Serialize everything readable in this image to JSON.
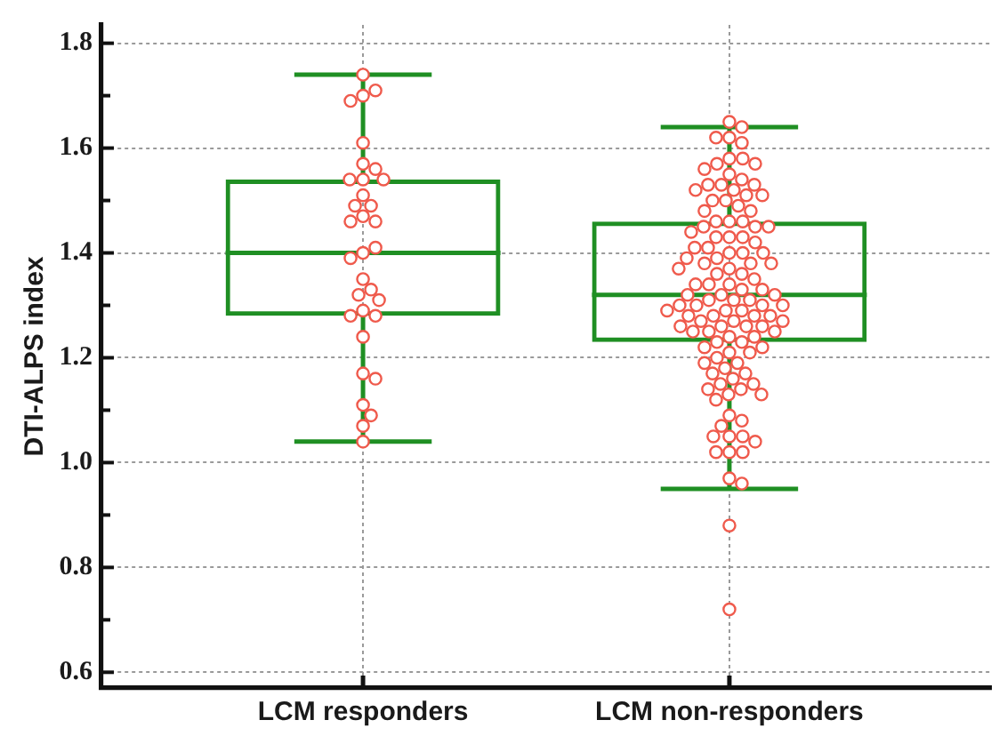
{
  "chart_data": {
    "type": "box",
    "ylabel": "DTI-ALPS index",
    "categories": [
      "LCM responders",
      "LCM non-responders"
    ],
    "ylim": [
      0.57,
      1.835
    ],
    "yticks": [
      0.6,
      {
        "value": 0.7,
        "label": null
      },
      0.8,
      {
        "value": 0.9,
        "label": null
      },
      {
        "value": 1,
        "label": "1.0"
      },
      {
        "value": 1.1,
        "label": null
      },
      1.2,
      {
        "value": 1.3,
        "label": null
      },
      1.4,
      {
        "value": 1.5,
        "label": null
      },
      1.6,
      {
        "value": 1.7,
        "label": null
      },
      1.8
    ],
    "grid": true,
    "marker": "circle",
    "series": [
      {
        "type": "box",
        "color": "#1f8f23",
        "boxes": [
          {
            "low": 1.04,
            "q1": 1.28,
            "median": 1.4,
            "q3": 1.54,
            "high": 1.74
          },
          {
            "low": 0.95,
            "q1": 1.23,
            "median": 1.32,
            "q3": 1.46,
            "high": 1.64
          }
        ]
      },
      {
        "type": "scatter",
        "color": "#ef5a4c",
        "x": [
          "LCM responders",
          "LCM responders",
          "LCM responders",
          "LCM responders",
          "LCM responders",
          "LCM responders",
          "LCM responders",
          "LCM responders",
          "LCM responders",
          "LCM responders",
          "LCM responders",
          "LCM responders",
          "LCM responders",
          "LCM responders",
          "LCM responders",
          "LCM responders",
          "LCM responders",
          "LCM responders",
          "LCM responders",
          "LCM responders",
          "LCM responders",
          "LCM responders",
          "LCM responders",
          "LCM responders",
          "LCM responders",
          "LCM responders",
          "LCM responders",
          "LCM responders",
          "LCM responders",
          "LCM responders",
          "LCM responders",
          "LCM responders",
          "LCM responders",
          "LCM non-responders",
          "LCM non-responders",
          "LCM non-responders",
          "LCM non-responders",
          "LCM non-responders",
          "LCM non-responders",
          "LCM non-responders",
          "LCM non-responders",
          "LCM non-responders",
          "LCM non-responders",
          "LCM non-responders",
          "LCM non-responders",
          "LCM non-responders",
          "LCM non-responders",
          "LCM non-responders",
          "LCM non-responders",
          "LCM non-responders",
          "LCM non-responders",
          "LCM non-responders",
          "LCM non-responders",
          "LCM non-responders",
          "LCM non-responders",
          "LCM non-responders",
          "LCM non-responders",
          "LCM non-responders",
          "LCM non-responders",
          "LCM non-responders",
          "LCM non-responders",
          "LCM non-responders",
          "LCM non-responders",
          "LCM non-responders",
          "LCM non-responders",
          "LCM non-responders",
          "LCM non-responders",
          "LCM non-responders",
          "LCM non-responders",
          "LCM non-responders",
          "LCM non-responders",
          "LCM non-responders",
          "LCM non-responders",
          "LCM non-responders",
          "LCM non-responders",
          "LCM non-responders",
          "LCM non-responders",
          "LCM non-responders",
          "LCM non-responders",
          "LCM non-responders",
          "LCM non-responders",
          "LCM non-responders",
          "LCM non-responders",
          "LCM non-responders",
          "LCM non-responders",
          "LCM non-responders",
          "LCM non-responders",
          "LCM non-responders",
          "LCM non-responders",
          "LCM non-responders",
          "LCM non-responders",
          "LCM non-responders",
          "LCM non-responders",
          "LCM non-responders",
          "LCM non-responders",
          "LCM non-responders",
          "LCM non-responders",
          "LCM non-responders",
          "LCM non-responders",
          "LCM non-responders",
          "LCM non-responders",
          "LCM non-responders",
          "LCM non-responders",
          "LCM non-responders",
          "LCM non-responders",
          "LCM non-responders",
          "LCM non-responders",
          "LCM non-responders",
          "LCM non-responders",
          "LCM non-responders",
          "LCM non-responders",
          "LCM non-responders",
          "LCM non-responders",
          "LCM non-responders",
          "LCM non-responders",
          "LCM non-responders",
          "LCM non-responders",
          "LCM non-responders",
          "LCM non-responders",
          "LCM non-responders",
          "LCM non-responders",
          "LCM non-responders",
          "LCM non-responders",
          "LCM non-responders",
          "LCM non-responders",
          "LCM non-responders",
          "LCM non-responders",
          "LCM non-responders",
          "LCM non-responders",
          "LCM non-responders",
          "LCM non-responders",
          "LCM non-responders",
          "LCM non-responders",
          "LCM non-responders",
          "LCM non-responders",
          "LCM non-responders",
          "LCM non-responders",
          "LCM non-responders",
          "LCM non-responders",
          "LCM non-responders",
          "LCM non-responders",
          "LCM non-responders",
          "LCM non-responders",
          "LCM non-responders",
          "LCM non-responders",
          "LCM non-responders",
          "LCM non-responders",
          "LCM non-responders",
          "LCM non-responders",
          "LCM non-responders",
          "LCM non-responders"
        ],
        "values": [
          1.74,
          1.7,
          1.71,
          1.69,
          1.61,
          1.57,
          1.56,
          1.54,
          1.54,
          1.54,
          1.51,
          1.49,
          1.49,
          1.47,
          1.46,
          1.46,
          1.4,
          1.41,
          1.39,
          1.35,
          1.33,
          1.32,
          1.31,
          1.29,
          1.28,
          1.28,
          1.24,
          1.17,
          1.16,
          1.11,
          1.09,
          1.07,
          1.04,
          1.65,
          1.64,
          1.62,
          1.62,
          1.61,
          1.58,
          1.58,
          1.57,
          1.57,
          1.56,
          1.55,
          1.54,
          1.53,
          1.53,
          1.53,
          1.52,
          1.52,
          1.51,
          1.51,
          1.5,
          1.5,
          1.49,
          1.48,
          1.48,
          1.46,
          1.46,
          1.46,
          1.45,
          1.45,
          1.45,
          1.44,
          1.43,
          1.43,
          1.43,
          1.42,
          1.41,
          1.41,
          1.4,
          1.4,
          1.4,
          1.39,
          1.39,
          1.38,
          1.38,
          1.38,
          1.37,
          1.37,
          1.36,
          1.36,
          1.35,
          1.34,
          1.34,
          1.34,
          1.33,
          1.33,
          1.32,
          1.32,
          1.32,
          1.31,
          1.31,
          1.31,
          1.3,
          1.3,
          1.3,
          1.3,
          1.29,
          1.29,
          1.29,
          1.28,
          1.28,
          1.28,
          1.28,
          1.27,
          1.27,
          1.27,
          1.26,
          1.26,
          1.26,
          1.26,
          1.25,
          1.25,
          1.25,
          1.24,
          1.24,
          1.23,
          1.23,
          1.22,
          1.22,
          1.21,
          1.21,
          1.2,
          1.19,
          1.19,
          1.18,
          1.17,
          1.17,
          1.16,
          1.15,
          1.15,
          1.14,
          1.14,
          1.13,
          1.13,
          1.12,
          1.09,
          1.08,
          1.07,
          1.05,
          1.05,
          1.05,
          1.04,
          1.02,
          1.02,
          1.02,
          0.97,
          0.96,
          0.88,
          0.72
        ]
      }
    ]
  }
}
